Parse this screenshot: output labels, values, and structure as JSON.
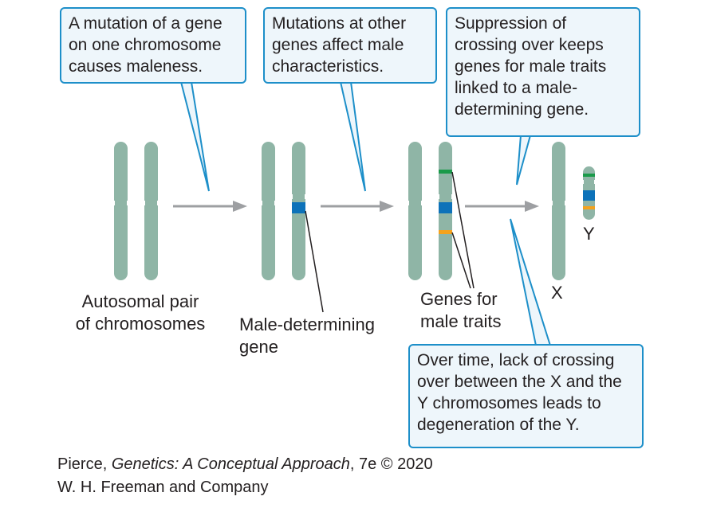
{
  "callouts": {
    "mutation_gene": "A mutation of a gene on one chromosome causes maleness.",
    "other_genes": "Mutations at other genes affect male characteristics.",
    "suppression": "Suppression of crossing over keeps genes for male traits linked to a male-determining gene.",
    "over_time": "Over time, lack of crossing over between the X and the Y chromosomes leads to degeneration of the Y."
  },
  "labels": {
    "autosomal_line1": "Autosomal pair",
    "autosomal_line2": "of chromosomes",
    "male_det_line1": "Male-determining",
    "male_det_line2": "gene",
    "genes_male_line1": "Genes for",
    "genes_male_line2": "male traits",
    "x_chrom": "X",
    "y_chrom": "Y"
  },
  "credit": {
    "author": "Pierce, ",
    "title": "Genetics: A Conceptual Approach",
    "edition": ", 7e © 2020",
    "publisher": "W. H. Freeman and Company"
  },
  "colors": {
    "chromosome": "#8fb5a6",
    "callout_border": "#1d8fc9",
    "callout_fill": "#eef6fb",
    "arrow": "#9d9fa2",
    "male_gene_band": "#0d72b9",
    "trait_band_green": "#1a9a4a",
    "trait_band_orange": "#f4a21d"
  }
}
